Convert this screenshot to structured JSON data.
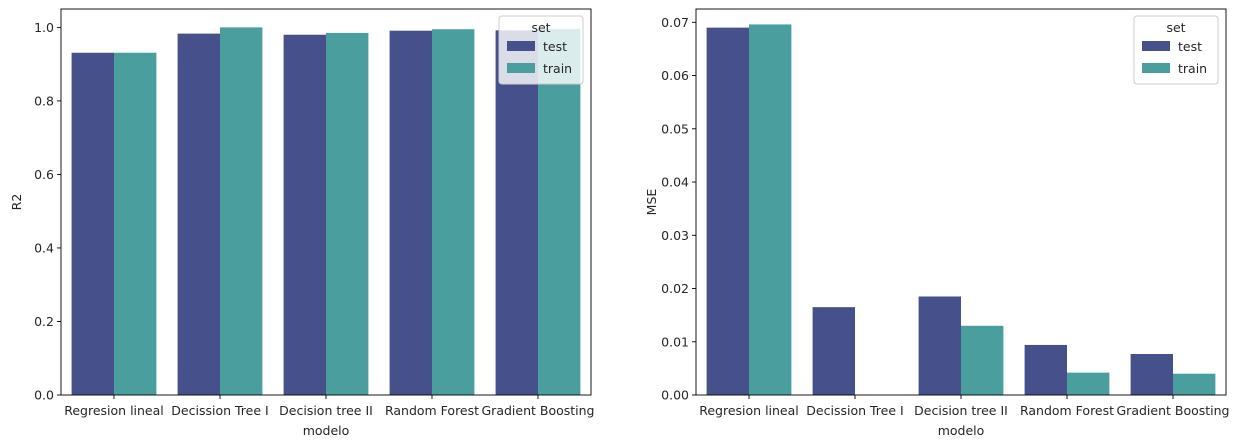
{
  "chart_data": [
    {
      "type": "bar",
      "xlabel": "modelo",
      "ylabel": "R2",
      "categories": [
        "Regresion lineal",
        "Decission Tree I",
        "Decision tree II",
        "Random Forest",
        "Gradient Boosting"
      ],
      "series": [
        {
          "name": "test",
          "values": [
            0.931,
            0.983,
            0.98,
            0.991,
            0.992
          ]
        },
        {
          "name": "train",
          "values": [
            0.931,
            1.0,
            0.985,
            0.995,
            0.996
          ]
        }
      ],
      "ylim": [
        0,
        1.05
      ],
      "yticks": [
        "0.0",
        "0.2",
        "0.4",
        "0.6",
        "0.8",
        "1.0"
      ],
      "legend": {
        "title": "set",
        "placement": "top-right"
      }
    },
    {
      "type": "bar",
      "xlabel": "modelo",
      "ylabel": "MSE",
      "categories": [
        "Regresion lineal",
        "Decission Tree I",
        "Decision tree II",
        "Random Forest",
        "Gradient Boosting"
      ],
      "series": [
        {
          "name": "test",
          "values": [
            0.069,
            0.0165,
            0.0185,
            0.0094,
            0.0077
          ]
        },
        {
          "name": "train",
          "values": [
            0.0696,
            0.0,
            0.013,
            0.0042,
            0.004
          ]
        }
      ],
      "ylim": [
        0,
        0.0725
      ],
      "yticks": [
        "0.00",
        "0.01",
        "0.02",
        "0.03",
        "0.04",
        "0.05",
        "0.06",
        "0.07"
      ],
      "legend": {
        "title": "set",
        "placement": "top-right"
      }
    }
  ],
  "colors": {
    "test": "#46508a",
    "train": "#4a9e9e"
  }
}
